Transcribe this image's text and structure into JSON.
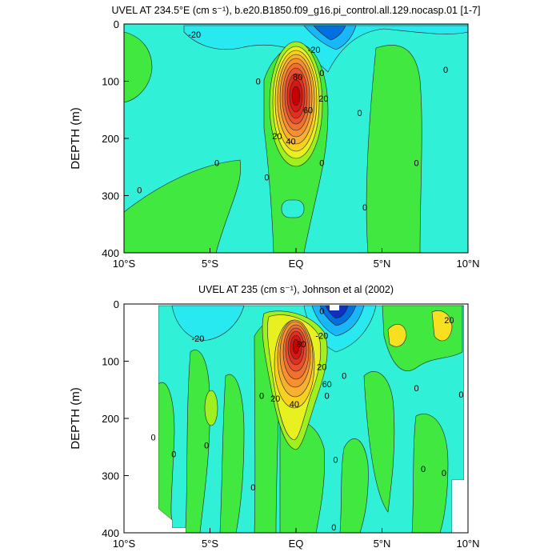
{
  "chart_data": [
    {
      "type": "contour",
      "title": "UVEL AT 234.5°E (cm s⁻¹), b.e20.B1850.f09_g16.pi_control.all.129.nocasp.01 [1-7]",
      "xlabel": "",
      "ylabel": "DEPTH (m)",
      "xlim": [
        -10,
        10
      ],
      "ylim": [
        400,
        0
      ],
      "x_ticks": [
        {
          "value": -10,
          "label": "10°S"
        },
        {
          "value": -5,
          "label": "5°S"
        },
        {
          "value": 0,
          "label": "EQ"
        },
        {
          "value": 5,
          "label": "5°N"
        },
        {
          "value": 10,
          "label": "10°N"
        }
      ],
      "y_ticks": [
        0,
        100,
        200,
        300,
        400
      ],
      "contour_interval": 10,
      "core": {
        "lat": 0,
        "depth": 120,
        "max_speed": 100
      },
      "contour_labels": [
        {
          "text": "-20",
          "lat": -5.9,
          "depth": 18
        },
        {
          "text": "-20",
          "lat": 1.05,
          "depth": 45
        },
        {
          "text": "0",
          "lat": -2.2,
          "depth": 100
        },
        {
          "text": "0",
          "lat": 1.5,
          "depth": 85
        },
        {
          "text": "80",
          "lat": 0.1,
          "depth": 92
        },
        {
          "text": "20",
          "lat": 1.6,
          "depth": 130
        },
        {
          "text": "60",
          "lat": 0.7,
          "depth": 150
        },
        {
          "text": "0",
          "lat": 3.7,
          "depth": 155
        },
        {
          "text": "20",
          "lat": -1.1,
          "depth": 196
        },
        {
          "text": "40",
          "lat": -0.3,
          "depth": 205
        },
        {
          "text": "0",
          "lat": -1.7,
          "depth": 268
        },
        {
          "text": "0",
          "lat": 1.5,
          "depth": 243
        },
        {
          "text": "0",
          "lat": -4.6,
          "depth": 243
        },
        {
          "text": "0",
          "lat": 7.0,
          "depth": 243
        },
        {
          "text": "0",
          "lat": -9.1,
          "depth": 290
        },
        {
          "text": "0",
          "lat": 4.0,
          "depth": 320
        },
        {
          "text": "0",
          "lat": 8.7,
          "depth": 80
        }
      ]
    },
    {
      "type": "contour",
      "title": "UVEL AT 235 (cm s⁻¹), Johnson et al (2002)",
      "xlabel": "",
      "ylabel": "DEPTH (m)",
      "xlim": [
        -10,
        10
      ],
      "ylim": [
        400,
        0
      ],
      "x_ticks": [
        {
          "value": -10,
          "label": "10°S"
        },
        {
          "value": -5,
          "label": "5°S"
        },
        {
          "value": 0,
          "label": "EQ"
        },
        {
          "value": 5,
          "label": "5°N"
        },
        {
          "value": 10,
          "label": "10°N"
        }
      ],
      "y_ticks": [
        0,
        100,
        200,
        300,
        400
      ],
      "contour_interval": 10,
      "core": {
        "lat": 0,
        "depth": 90,
        "max_speed": 110
      },
      "contour_labels": [
        {
          "text": "-20",
          "lat": -5.7,
          "depth": 60
        },
        {
          "text": "0",
          "lat": 1.5,
          "depth": 12
        },
        {
          "text": "-20",
          "lat": 1.5,
          "depth": 55
        },
        {
          "text": "20",
          "lat": 8.9,
          "depth": 28
        },
        {
          "text": "80",
          "lat": 0.3,
          "depth": 70
        },
        {
          "text": "20",
          "lat": 1.5,
          "depth": 110
        },
        {
          "text": "60",
          "lat": 1.8,
          "depth": 140
        },
        {
          "text": "0",
          "lat": 2.8,
          "depth": 125
        },
        {
          "text": "0",
          "lat": -2.0,
          "depth": 160
        },
        {
          "text": "0",
          "lat": 1.8,
          "depth": 160
        },
        {
          "text": "20",
          "lat": -1.2,
          "depth": 165
        },
        {
          "text": "40",
          "lat": -0.1,
          "depth": 175
        },
        {
          "text": "0",
          "lat": 7.0,
          "depth": 147
        },
        {
          "text": "0",
          "lat": 9.6,
          "depth": 158
        },
        {
          "text": "0",
          "lat": -8.3,
          "depth": 233
        },
        {
          "text": "0",
          "lat": -5.2,
          "depth": 247
        },
        {
          "text": "0",
          "lat": -7.1,
          "depth": 262
        },
        {
          "text": "0",
          "lat": 2.3,
          "depth": 272
        },
        {
          "text": "0",
          "lat": 7.4,
          "depth": 288
        },
        {
          "text": "0",
          "lat": 8.6,
          "depth": 295
        },
        {
          "text": "0",
          "lat": -2.5,
          "depth": 320
        },
        {
          "text": "0",
          "lat": 2.2,
          "depth": 390
        }
      ]
    }
  ]
}
